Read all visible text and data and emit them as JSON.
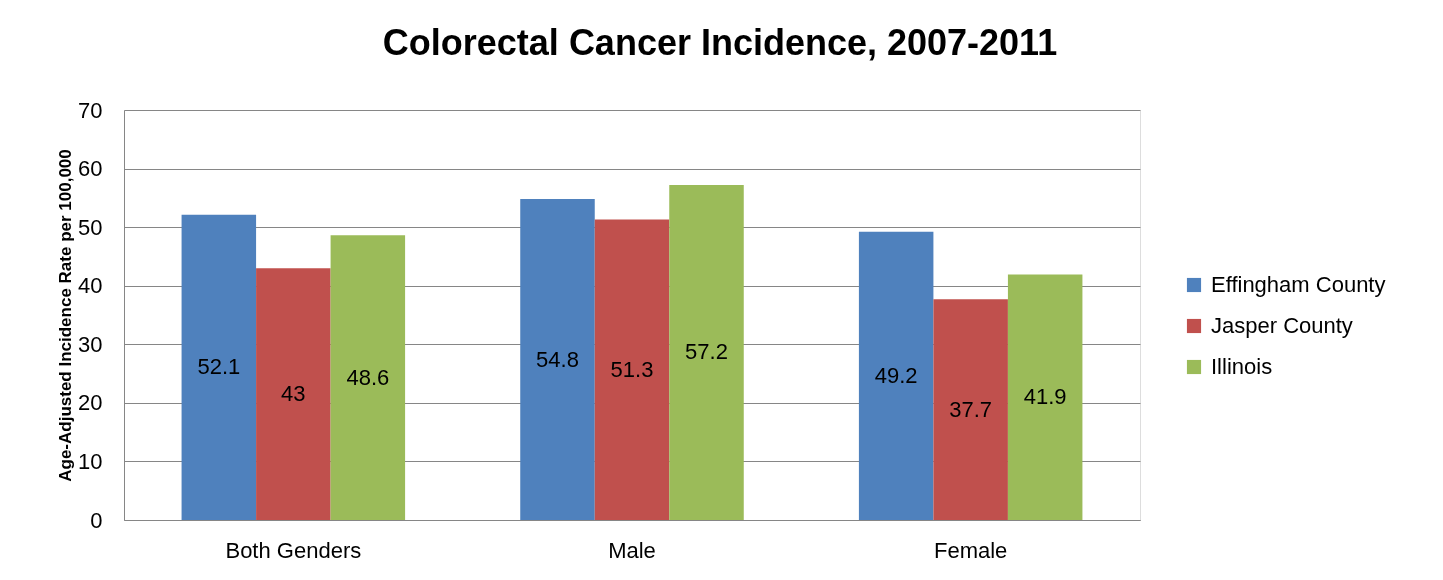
{
  "chart_data": {
    "type": "bar",
    "title": "Colorectal Cancer Incidence, 2007-2011",
    "ylabel": "Age-Adjusted Incidence Rate per 100,000",
    "categories": [
      "Both Genders",
      "Male",
      "Female"
    ],
    "series": [
      {
        "name": "Effingham County",
        "color": "#4f81bd",
        "values": [
          52.1,
          54.8,
          49.2
        ]
      },
      {
        "name": "Jasper County",
        "color": "#c0504d",
        "values": [
          43,
          51.3,
          37.7
        ]
      },
      {
        "name": "Illinois",
        "color": "#9bbb59",
        "values": [
          48.6,
          57.2,
          41.9
        ]
      }
    ],
    "ylim": [
      0,
      70
    ],
    "yticks": [
      0,
      10,
      20,
      30,
      40,
      50,
      60,
      70
    ],
    "grid": "y",
    "legend": "right",
    "data_labels": true
  }
}
